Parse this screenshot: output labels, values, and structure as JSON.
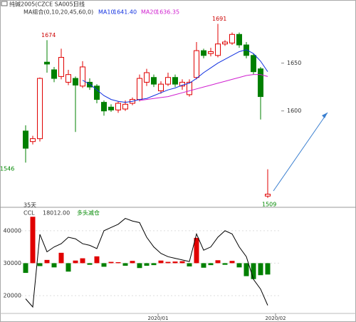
{
  "chart_data": [
    {
      "type": "candlestick",
      "title": "纯碱2005(CZCE SA005)",
      "period": "日线",
      "indicator": "MA组合(0,10,20,45,60,0)",
      "open": [
        1579,
        1568,
        1571,
        1651,
        1643,
        1636,
        1630,
        1634,
        1626,
        1630,
        1626,
        1609,
        1604,
        1601,
        1602,
        1608,
        1612,
        1630,
        1635,
        1621,
        1628,
        1635,
        1626,
        1617,
        1635,
        1663,
        1660,
        1658,
        1670,
        1671,
        1680,
        1669,
        1658,
        1644,
        1511
      ],
      "high": [
        1585,
        1574,
        1635,
        1674,
        1646,
        1665,
        1643,
        1636,
        1652,
        1634,
        1628,
        1611,
        1607,
        1610,
        1611,
        1614,
        1638,
        1644,
        1638,
        1631,
        1640,
        1638,
        1633,
        1633,
        1672,
        1665,
        1666,
        1691,
        1674,
        1682,
        1682,
        1672,
        1660,
        1646,
        1539
      ],
      "low": [
        1546,
        1565,
        1568,
        1640,
        1630,
        1633,
        1627,
        1578,
        1624,
        1622,
        1608,
        1595,
        1599,
        1598,
        1600,
        1606,
        1610,
        1626,
        1625,
        1618,
        1626,
        1625,
        1622,
        1615,
        1633,
        1655,
        1657,
        1656,
        1668,
        1669,
        1666,
        1655,
        1638,
        1591,
        1509
      ],
      "close": [
        1561,
        1571,
        1634,
        1649,
        1634,
        1656,
        1638,
        1627,
        1646,
        1625,
        1612,
        1600,
        1601,
        1608,
        1607,
        1612,
        1634,
        1640,
        1628,
        1628,
        1635,
        1628,
        1630,
        1630,
        1663,
        1658,
        1662,
        1670,
        1672,
        1680,
        1669,
        1658,
        1641,
        1615,
        1513
      ],
      "up_color": "#e00000",
      "down_color": "#008000",
      "series": [
        {
          "name": "MA10",
          "color": "#1030e0",
          "legend_value": "1641.40",
          "values": [
            null,
            null,
            null,
            null,
            null,
            null,
            null,
            null,
            1632,
            1628,
            1622,
            1616,
            1612,
            1610,
            1609,
            1610,
            1612,
            1613,
            1616,
            1619,
            1622,
            1624,
            1627,
            1629,
            1634,
            1640,
            1645,
            1650,
            1654,
            1658,
            1662,
            1664,
            1660,
            1652,
            1641
          ]
        },
        {
          "name": "MA20",
          "color": "#d020d0",
          "legend_value": "1636.35",
          "values": [
            null,
            null,
            null,
            null,
            null,
            null,
            null,
            null,
            null,
            null,
            null,
            null,
            null,
            null,
            null,
            null,
            1611,
            1612,
            1613,
            1614,
            1615,
            1617,
            1619,
            1621,
            1623,
            1625,
            1627,
            1629,
            1631,
            1633,
            1635,
            1637,
            1638,
            1638,
            1636
          ]
        }
      ],
      "annotation": "35天",
      "ylim": [
        1500,
        1710
      ],
      "yticks": [
        1600,
        1650
      ]
    },
    {
      "type": "bar_line",
      "title": "CCL",
      "value_label": "18012.00",
      "note": "多头减仓",
      "bars": [
        27000,
        44300,
        29100,
        31000,
        28700,
        33200,
        27400,
        30800,
        31500,
        29500,
        32100,
        28900,
        30400,
        30300,
        29200,
        30700,
        28500,
        29200,
        29400,
        30800,
        30400,
        30500,
        30600,
        29000,
        37800,
        28600,
        29400,
        30900,
        29500,
        30700,
        28700,
        26000,
        25100,
        26300,
        26500
      ],
      "line": [
        19000,
        16500,
        38900,
        33500,
        35000,
        36000,
        38000,
        37500,
        36000,
        35500,
        34500,
        40000,
        41000,
        42000,
        43800,
        43000,
        42500,
        38000,
        35000,
        33000,
        32000,
        31500,
        31000,
        30500,
        39000,
        34000,
        35000,
        38000,
        40000,
        39000,
        35000,
        32000,
        25000,
        22000,
        17000
      ],
      "up_color": "#e00000",
      "down_color": "#008000",
      "line_color": "#000000",
      "ylim": [
        14500,
        47000
      ],
      "yticks": [
        20000,
        30000,
        40000
      ],
      "xticks": [
        {
          "value": 18.6,
          "label": "2020/01"
        },
        {
          "value": 35.1,
          "label": "2020/02"
        }
      ]
    }
  ]
}
